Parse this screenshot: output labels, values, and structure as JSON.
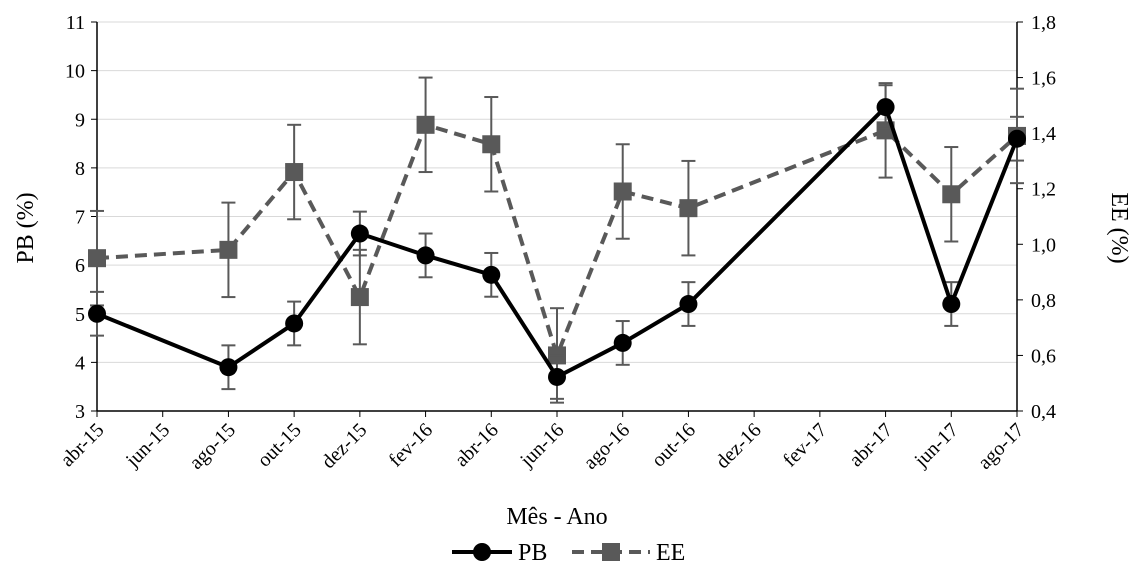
{
  "chart_data": {
    "type": "line",
    "x": [
      "abr-15",
      "ago-15",
      "out-15",
      "dez-15",
      "fev-16",
      "abr-16",
      "jun-16",
      "ago-16",
      "out-16",
      "abr-17",
      "jun-17",
      "ago-17"
    ],
    "x_tick_labels": [
      "abr-15",
      "jun-15",
      "ago-15",
      "out-15",
      "dez-15",
      "fev-16",
      "abr-16",
      "jun-16",
      "ago-16",
      "out-16",
      "dez-16",
      "fev-17",
      "abr-17",
      "jun-17",
      "ago-17"
    ],
    "xlabel": "Mês - Ano",
    "ylabel_left": "PB (%)",
    "ylabel_right": "EE (%)",
    "ylim_left": [
      3,
      11
    ],
    "ylim_right": [
      0.4,
      1.8
    ],
    "y_ticks_left": [
      "3",
      "4",
      "5",
      "6",
      "7",
      "8",
      "9",
      "10",
      "11"
    ],
    "y_ticks_right": [
      "0,4",
      "0,6",
      "0,8",
      "1,0",
      "1,2",
      "1,4",
      "1,6",
      "1,8"
    ],
    "grid": true,
    "legend_position": "bottom",
    "series": [
      {
        "name": "PB",
        "axis": "left",
        "style": "solid",
        "marker": "circle",
        "color": "#000000",
        "values": [
          5.0,
          3.9,
          4.8,
          6.65,
          6.2,
          5.8,
          3.7,
          4.4,
          5.2,
          9.25,
          5.2,
          8.6
        ],
        "error": [
          0.45,
          0.45,
          0.45,
          0.45,
          0.45,
          0.45,
          0.45,
          0.45,
          0.45,
          0.45,
          0.45,
          0.45
        ]
      },
      {
        "name": "EE",
        "axis": "right",
        "style": "dashed",
        "marker": "square",
        "color": "#595959",
        "values": [
          0.95,
          0.98,
          1.26,
          0.81,
          1.43,
          1.36,
          0.6,
          1.19,
          1.13,
          1.41,
          1.18,
          1.39
        ],
        "error": [
          0.17,
          0.17,
          0.17,
          0.17,
          0.17,
          0.17,
          0.17,
          0.17,
          0.17,
          0.17,
          0.17,
          0.17
        ]
      }
    ]
  }
}
